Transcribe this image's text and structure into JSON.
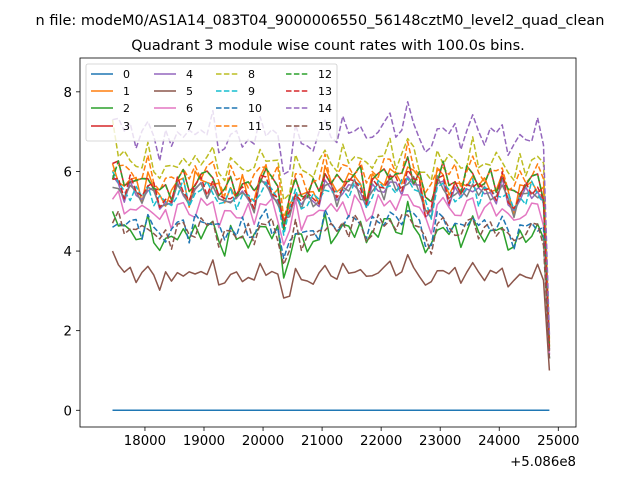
{
  "chart_data": {
    "type": "line",
    "suptitle": "n file: modeM0/AS1A14_083T04_9000006550_56148cztM0_level2_quad_clean",
    "title": "Quadrant 3 module wise count rates with 100.0s bins.",
    "xlabel": "",
    "ylabel": "",
    "x_offset_label": "+5.086e8",
    "xlim": [
      16900,
      25300
    ],
    "ylim": [
      -0.42,
      8.85
    ],
    "xticks": [
      18000,
      19000,
      20000,
      21000,
      22000,
      23000,
      24000,
      25000
    ],
    "xtick_labels": [
      "18000",
      "19000",
      "20000",
      "21000",
      "22000",
      "23000",
      "24000",
      "25000"
    ],
    "yticks": [
      0,
      2,
      4,
      6,
      8
    ],
    "ytick_labels": [
      "0",
      "2",
      "4",
      "6",
      "8"
    ],
    "x_start": 17450,
    "x_step": 100,
    "n_points": 75,
    "legend_position": "upper-left",
    "legend_ncol": 4,
    "series": [
      {
        "name": "0",
        "color": "#1f77b4",
        "dash": "solid",
        "base": 0.0,
        "amp": 0.0,
        "start": 0.0,
        "end": 0.0
      },
      {
        "name": "1",
        "color": "#ff7f0e",
        "dash": "solid",
        "base": 5.6,
        "amp": 0.5,
        "start": 6.2,
        "end": 1.6
      },
      {
        "name": "2",
        "color": "#2ca02c",
        "dash": "solid",
        "base": 4.4,
        "amp": 0.45,
        "start": 5.0,
        "end": 1.3
      },
      {
        "name": "3",
        "color": "#d62728",
        "dash": "solid",
        "base": 5.7,
        "amp": 0.45,
        "start": 6.2,
        "end": 1.5
      },
      {
        "name": "4",
        "color": "#9467bd",
        "dash": "solid",
        "base": 5.4,
        "amp": 0.4,
        "start": 5.9,
        "end": 1.4
      },
      {
        "name": "5",
        "color": "#8c564b",
        "dash": "solid",
        "base": 3.4,
        "amp": 0.3,
        "start": 4.0,
        "end": 1.0
      },
      {
        "name": "6",
        "color": "#e377c2",
        "dash": "solid",
        "base": 5.0,
        "amp": 0.4,
        "start": 5.3,
        "end": 1.4
      },
      {
        "name": "7",
        "color": "#7f7f7f",
        "dash": "solid",
        "base": 5.4,
        "amp": 0.4,
        "start": 5.6,
        "end": 1.5
      },
      {
        "name": "8",
        "color": "#bcbd22",
        "dash": "dashed",
        "base": 6.2,
        "amp": 0.45,
        "start": 7.3,
        "end": 1.8
      },
      {
        "name": "9",
        "color": "#17becf",
        "dash": "dashed",
        "base": 5.4,
        "amp": 0.4,
        "start": 6.0,
        "end": 1.5
      },
      {
        "name": "10",
        "color": "#1f77b4",
        "dash": "dashed",
        "base": 4.6,
        "amp": 0.4,
        "start": 4.6,
        "end": 1.3
      },
      {
        "name": "11",
        "color": "#ff7f0e",
        "dash": "dashed",
        "base": 5.9,
        "amp": 0.45,
        "start": 6.0,
        "end": 1.7
      },
      {
        "name": "12",
        "color": "#2ca02c",
        "dash": "dashed",
        "base": 5.7,
        "amp": 0.45,
        "start": 5.8,
        "end": 1.6
      },
      {
        "name": "13",
        "color": "#d62728",
        "dash": "dashed",
        "base": 5.5,
        "amp": 0.45,
        "start": 5.8,
        "end": 1.5
      },
      {
        "name": "14",
        "color": "#9467bd",
        "dash": "dashed",
        "base": 6.9,
        "amp": 0.5,
        "start": 7.3,
        "end": 1.9
      },
      {
        "name": "15",
        "color": "#8c564b",
        "dash": "dashed",
        "base": 4.5,
        "amp": 0.4,
        "start": 4.7,
        "end": 1.3
      }
    ]
  }
}
